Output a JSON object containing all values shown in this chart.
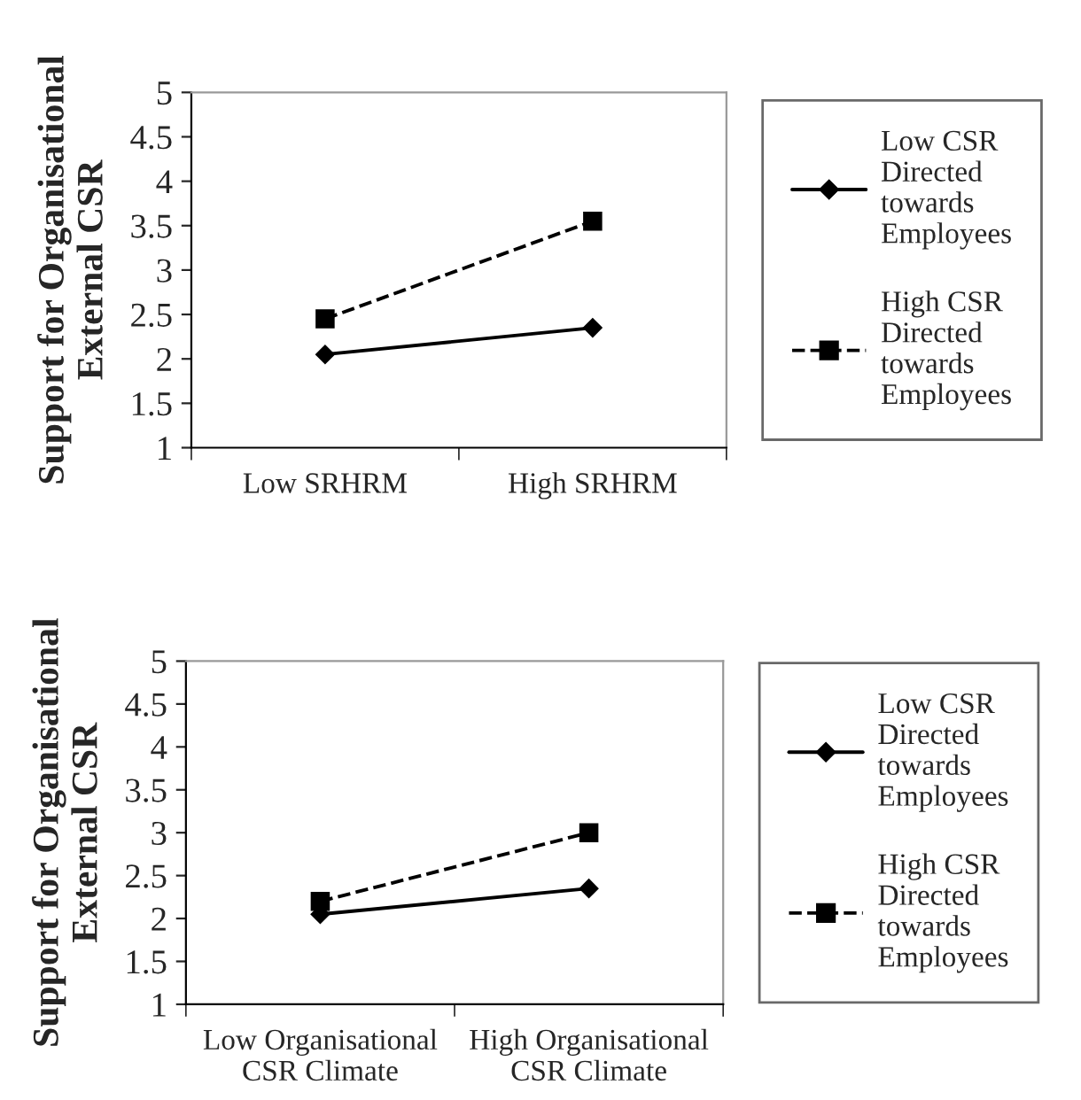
{
  "chart_data": [
    {
      "type": "line",
      "ylabel": "Support for Organisational\nExternal CSR",
      "categories": [
        "Low SRHRM",
        "High SRHRM"
      ],
      "ylim": [
        1,
        5
      ],
      "yticks": [
        1,
        1.5,
        2,
        2.5,
        3,
        3.5,
        4,
        4.5,
        5
      ],
      "grid": false,
      "legend": "right",
      "series": [
        {
          "name": "Low CSR\nDirected\ntowards\nEmployees",
          "color": "#000000",
          "marker": "diamond",
          "line_style": "solid",
          "values": [
            2.05,
            2.35
          ]
        },
        {
          "name": "High CSR\nDirected\ntowards\nEmployees",
          "color": "#000000",
          "marker": "square",
          "line_style": "dashed",
          "values": [
            2.45,
            3.55
          ]
        }
      ]
    },
    {
      "type": "line",
      "ylabel": "Support for Organisational\nExternal CSR",
      "categories": [
        "Low Organisational\nCSR Climate",
        "High Organisational\nCSR Climate"
      ],
      "ylim": [
        1,
        5
      ],
      "yticks": [
        1,
        1.5,
        2,
        2.5,
        3,
        3.5,
        4,
        4.5,
        5
      ],
      "grid": false,
      "legend": "right",
      "series": [
        {
          "name": "Low CSR\nDirected\ntowards\nEmployees",
          "color": "#000000",
          "marker": "diamond",
          "line_style": "solid",
          "values": [
            2.05,
            2.35
          ]
        },
        {
          "name": "High CSR\nDirected\ntowards\nEmployees",
          "color": "#000000",
          "marker": "square",
          "line_style": "dashed",
          "values": [
            2.2,
            3.0
          ]
        }
      ]
    }
  ]
}
